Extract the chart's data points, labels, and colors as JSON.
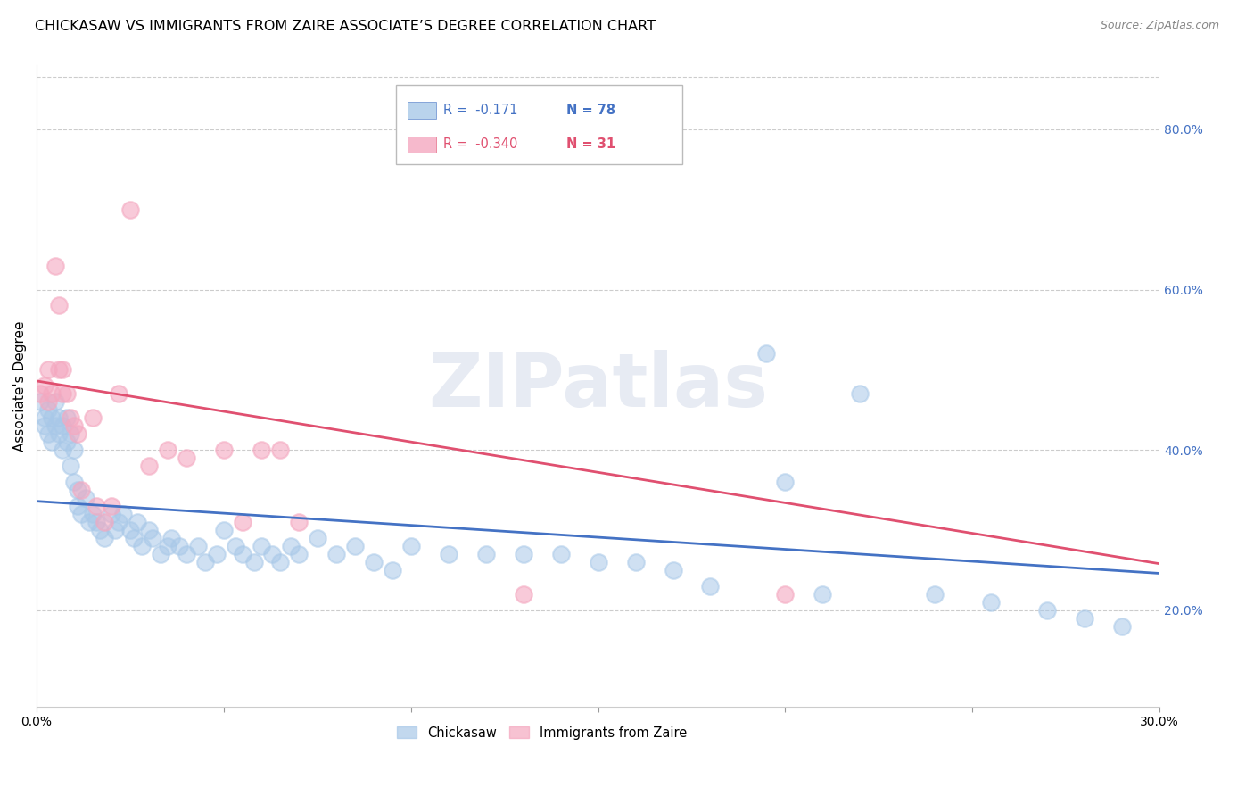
{
  "title": "CHICKASAW VS IMMIGRANTS FROM ZAIRE ASSOCIATE’S DEGREE CORRELATION CHART",
  "source": "Source: ZipAtlas.com",
  "ylabel": "Associate's Degree",
  "watermark": "ZIPatlas",
  "chickasaw_label": "Chickasaw",
  "zaire_label": "Immigrants from Zaire",
  "blue_color": "#a8c8e8",
  "pink_color": "#f4a8c0",
  "blue_line_color": "#4472c4",
  "pink_line_color": "#e05070",
  "right_tick_color": "#4472c4",
  "xmin": 0.0,
  "xmax": 0.3,
  "ymin": 0.08,
  "ymax": 0.88,
  "right_yticks": [
    0.2,
    0.4,
    0.6,
    0.8
  ],
  "bottom_xtick_vals": [
    0.0,
    0.05,
    0.1,
    0.15,
    0.2,
    0.25,
    0.3
  ],
  "bottom_xtick_labels": [
    "0.0%",
    "",
    "",
    "",
    "",
    "",
    "30.0%"
  ],
  "legend_R1": "R =  -0.171",
  "legend_N1": "N = 78",
  "legend_R2": "R =  -0.340",
  "legend_N2": "N = 31",
  "title_fontsize": 11.5,
  "source_fontsize": 9,
  "tick_fontsize": 10,
  "background_color": "#ffffff",
  "grid_color": "#cccccc",
  "blue_scatter_x": [
    0.001,
    0.002,
    0.002,
    0.003,
    0.003,
    0.004,
    0.004,
    0.005,
    0.005,
    0.006,
    0.006,
    0.007,
    0.007,
    0.008,
    0.008,
    0.009,
    0.009,
    0.01,
    0.01,
    0.011,
    0.011,
    0.012,
    0.013,
    0.014,
    0.015,
    0.016,
    0.017,
    0.018,
    0.02,
    0.021,
    0.022,
    0.023,
    0.025,
    0.026,
    0.027,
    0.028,
    0.03,
    0.031,
    0.033,
    0.035,
    0.036,
    0.038,
    0.04,
    0.043,
    0.045,
    0.048,
    0.05,
    0.053,
    0.055,
    0.058,
    0.06,
    0.063,
    0.065,
    0.068,
    0.07,
    0.075,
    0.08,
    0.085,
    0.09,
    0.095,
    0.1,
    0.11,
    0.12,
    0.13,
    0.14,
    0.15,
    0.16,
    0.17,
    0.18,
    0.195,
    0.2,
    0.21,
    0.22,
    0.24,
    0.255,
    0.27,
    0.28,
    0.29
  ],
  "blue_scatter_y": [
    0.46,
    0.44,
    0.43,
    0.45,
    0.42,
    0.44,
    0.41,
    0.46,
    0.43,
    0.44,
    0.42,
    0.43,
    0.4,
    0.44,
    0.41,
    0.42,
    0.38,
    0.4,
    0.36,
    0.35,
    0.33,
    0.32,
    0.34,
    0.31,
    0.32,
    0.31,
    0.3,
    0.29,
    0.32,
    0.3,
    0.31,
    0.32,
    0.3,
    0.29,
    0.31,
    0.28,
    0.3,
    0.29,
    0.27,
    0.28,
    0.29,
    0.28,
    0.27,
    0.28,
    0.26,
    0.27,
    0.3,
    0.28,
    0.27,
    0.26,
    0.28,
    0.27,
    0.26,
    0.28,
    0.27,
    0.29,
    0.27,
    0.28,
    0.26,
    0.25,
    0.28,
    0.27,
    0.27,
    0.27,
    0.27,
    0.26,
    0.26,
    0.25,
    0.23,
    0.52,
    0.36,
    0.22,
    0.47,
    0.22,
    0.21,
    0.2,
    0.19,
    0.18
  ],
  "pink_scatter_x": [
    0.001,
    0.002,
    0.003,
    0.003,
    0.004,
    0.005,
    0.006,
    0.006,
    0.007,
    0.007,
    0.008,
    0.009,
    0.01,
    0.011,
    0.012,
    0.015,
    0.016,
    0.018,
    0.02,
    0.022,
    0.025,
    0.03,
    0.035,
    0.04,
    0.05,
    0.055,
    0.06,
    0.065,
    0.07,
    0.13,
    0.2
  ],
  "pink_scatter_y": [
    0.47,
    0.48,
    0.5,
    0.46,
    0.47,
    0.63,
    0.58,
    0.5,
    0.5,
    0.47,
    0.47,
    0.44,
    0.43,
    0.42,
    0.35,
    0.44,
    0.33,
    0.31,
    0.33,
    0.47,
    0.7,
    0.38,
    0.4,
    0.39,
    0.4,
    0.31,
    0.4,
    0.4,
    0.31,
    0.22,
    0.22
  ],
  "blue_trend_x": [
    0.0,
    0.3
  ],
  "blue_trend_y": [
    0.336,
    0.246
  ],
  "pink_trend_x": [
    0.0,
    0.3
  ],
  "pink_trend_y": [
    0.486,
    0.258
  ]
}
